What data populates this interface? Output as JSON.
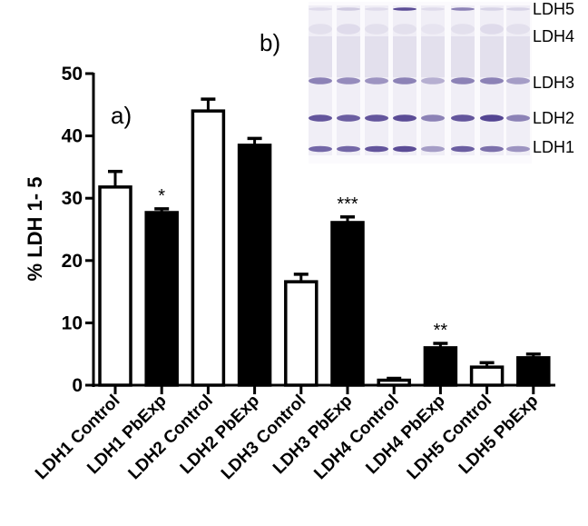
{
  "chart_data": {
    "type": "bar",
    "title": "",
    "xlabel": "",
    "ylabel": "% LDH 1- 5",
    "ylim": [
      0,
      50
    ],
    "yticks": [
      "0",
      "10",
      "20",
      "30",
      "40",
      "50"
    ],
    "grid": false,
    "panel_labels": [
      "a)",
      "b)"
    ],
    "categories": [
      "LDH1 Control",
      "LDH1 PbExp",
      "LDH2 Control",
      "LDH2 PbExp",
      "LDH3 Control",
      "LDH3 PbExp",
      "LDH4 Control",
      "LDH4 PbExp",
      "LDH5 Control",
      "LDH5 PbExp"
    ],
    "values": [
      31.8,
      27.7,
      44.0,
      38.5,
      16.6,
      26.1,
      0.8,
      6.0,
      2.9,
      4.4
    ],
    "error_upper": [
      34.3,
      28.3,
      45.9,
      39.6,
      17.8,
      27.0,
      1.1,
      6.7,
      3.6,
      5.0
    ],
    "fill": [
      "#ffffff",
      "#000000",
      "#ffffff",
      "#000000",
      "#ffffff",
      "#000000",
      "#ffffff",
      "#000000",
      "#ffffff",
      "#000000"
    ],
    "significance": [
      "",
      "*",
      "",
      "",
      "",
      "***",
      "",
      "**",
      "",
      ""
    ],
    "gel": {
      "band_labels": [
        "LDH5",
        "LDH4",
        "LDH3",
        "LDH2",
        "LDH1"
      ],
      "lanes": 8,
      "band_color": "#4a3a8c"
    }
  }
}
